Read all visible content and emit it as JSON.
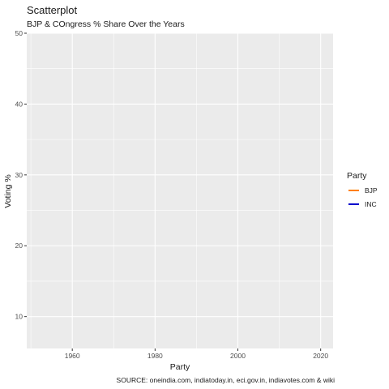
{
  "chart_data": {
    "type": "scatter",
    "title": "Scatterplot",
    "subtitle": "BJP & COngress  % Share Over the Years",
    "xlabel": "Party",
    "ylabel": "Voting %",
    "xlim": [
      1949,
      2023
    ],
    "ylim": [
      5.5,
      50
    ],
    "x_ticks": [
      1960,
      1980,
      2000,
      2020
    ],
    "y_ticks": [
      10,
      20,
      30,
      40,
      50
    ],
    "x_ticks_minor": [
      1950,
      1970,
      1990,
      2010
    ],
    "y_ticks_minor": [
      15,
      25,
      35,
      45
    ],
    "grid": true,
    "legend": {
      "title": "Party",
      "position": "right",
      "entries": [
        {
          "name": "BJP",
          "color": "#ff7f00"
        },
        {
          "name": "INC",
          "color": "#0000cc"
        }
      ]
    },
    "series": [
      {
        "name": "BJP",
        "color": "#ff7f00",
        "points": []
      },
      {
        "name": "INC",
        "color": "#0000cc",
        "points": []
      }
    ],
    "caption": "SOURCE: oneindia.com, indiatoday.in, eci.gov.in, indiavotes.com & wiki",
    "panel_color": "#ebebeb",
    "grid_color": "#ffffff"
  }
}
